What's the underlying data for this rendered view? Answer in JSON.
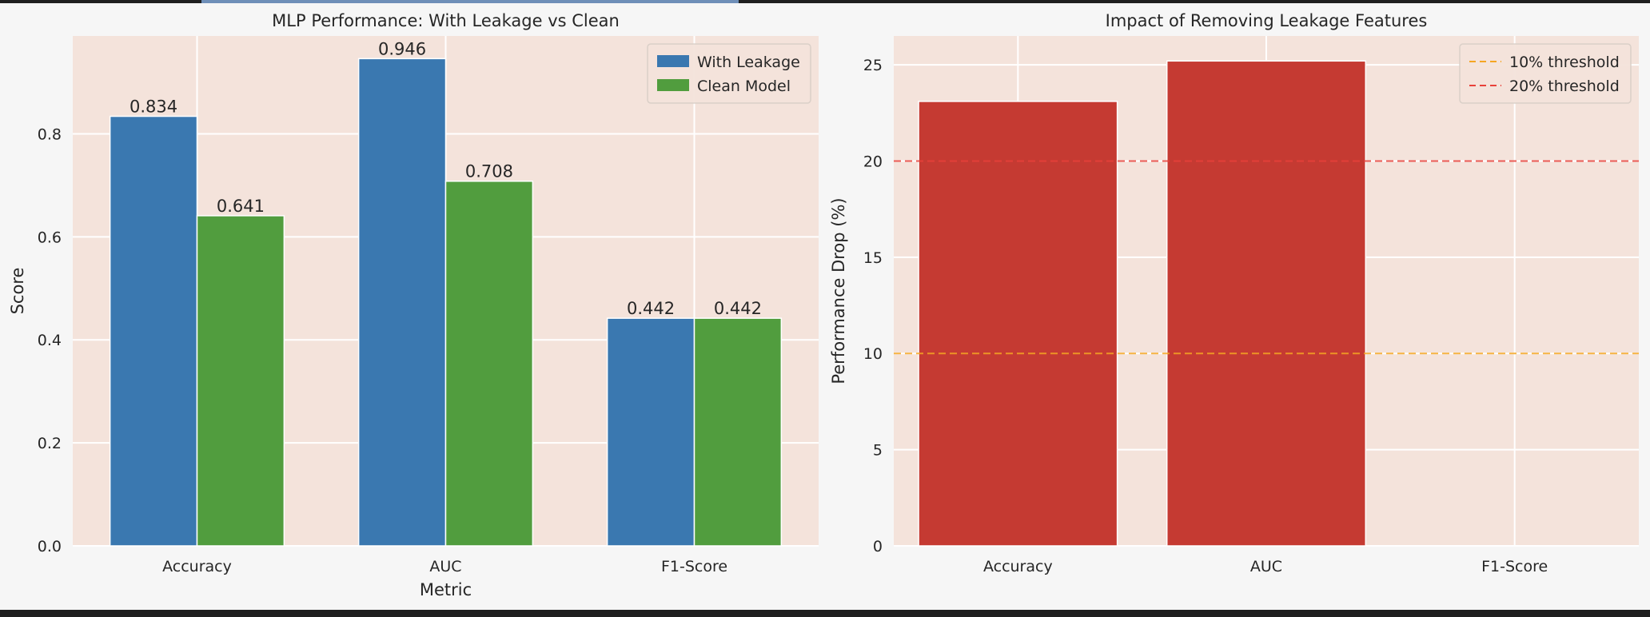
{
  "chart_data": [
    {
      "type": "bar",
      "title": "MLP Performance: With Leakage vs Clean",
      "xlabel": "Metric",
      "ylabel": "Score",
      "categories": [
        "Accuracy",
        "AUC",
        "F1-Score"
      ],
      "series": [
        {
          "name": "With Leakage",
          "values": [
            0.834,
            0.946,
            0.442
          ],
          "color": "#3a78b0",
          "labels": [
            "0.834",
            "0.946",
            "0.442"
          ]
        },
        {
          "name": "Clean Model",
          "values": [
            0.641,
            0.708,
            0.442
          ],
          "color": "#519d3e",
          "labels": [
            "0.641",
            "0.708",
            "0.442"
          ]
        }
      ],
      "ylim": [
        0,
        0.99
      ],
      "yticks": [
        0.0,
        0.2,
        0.4,
        0.6,
        0.8
      ],
      "ytick_labels": [
        "0.0",
        "0.2",
        "0.4",
        "0.6",
        "0.8"
      ],
      "grid": true,
      "legend": "top-right",
      "background": "#f4e3db"
    },
    {
      "type": "bar",
      "title": "Impact of Removing Leakage Features",
      "xlabel": "",
      "ylabel": "Performance Drop (%)",
      "categories": [
        "Accuracy",
        "AUC",
        "F1-Score"
      ],
      "series": [
        {
          "values": [
            23.1,
            25.2,
            0.0
          ],
          "color": "#c53a32"
        }
      ],
      "reference_lines": [
        {
          "name": "10% threshold",
          "value": 10,
          "color": "#f5a623",
          "style": "dashed"
        },
        {
          "name": "20% threshold",
          "value": 20,
          "color": "#e8413a",
          "style": "dashed"
        }
      ],
      "ylim": [
        0,
        26.5
      ],
      "yticks": [
        0,
        5,
        10,
        15,
        20,
        25
      ],
      "ytick_labels": [
        "0",
        "5",
        "10",
        "15",
        "20",
        "25"
      ],
      "grid": true,
      "legend": "top-right",
      "background": "#f4e3db"
    }
  ]
}
